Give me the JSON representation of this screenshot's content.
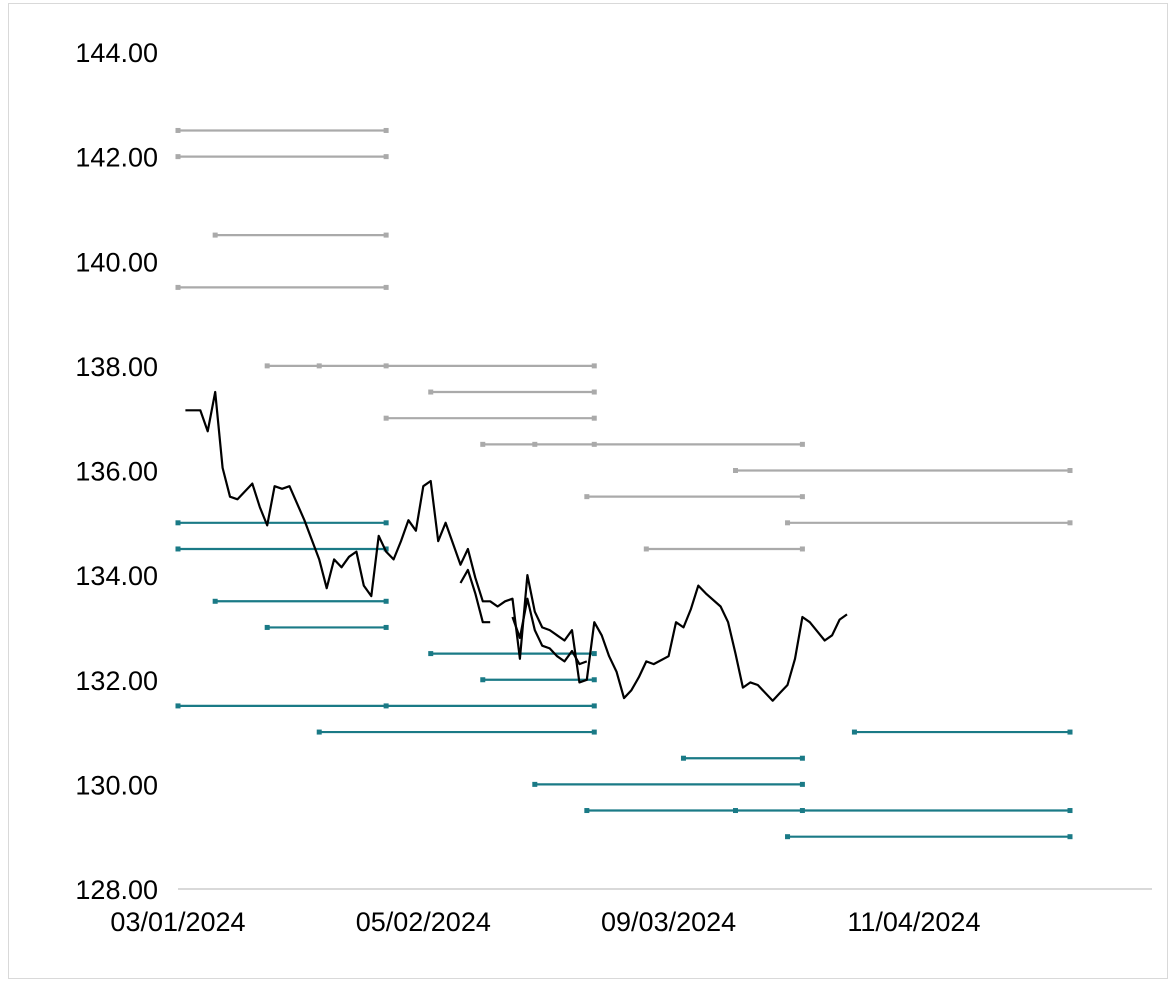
{
  "chart_data": {
    "type": "line",
    "title": "",
    "xlabel": "",
    "ylabel": "",
    "ylim": [
      128,
      144
    ],
    "yticks": [
      "128.00",
      "130.00",
      "132.00",
      "134.00",
      "136.00",
      "138.00",
      "140.00",
      "142.00",
      "144.00"
    ],
    "xticks": [
      {
        "date": "2024-01-03",
        "label": "03/01/2024"
      },
      {
        "date": "2024-02-05",
        "label": "05/02/2024"
      },
      {
        "date": "2024-03-09",
        "label": "09/03/2024"
      },
      {
        "date": "2024-04-11",
        "label": "11/04/2024"
      }
    ],
    "xlim": [
      "2024-01-03",
      "2024-05-02"
    ],
    "grid": false,
    "legend": "none",
    "colors": {
      "price_line": "#000000",
      "upper_levels": "#aaaaaa",
      "lower_levels": "#1a7a86",
      "axis": "#d9d9d9"
    },
    "series": [
      {
        "segments": [
          [
            [
              "2024-01-04",
              137.15
            ],
            [
              "2024-01-05",
              137.15
            ],
            [
              "2024-01-06",
              137.15
            ],
            [
              "2024-01-07",
              136.75
            ],
            [
              "2024-01-08",
              137.5
            ],
            [
              "2024-01-09",
              136.05
            ],
            [
              "2024-01-10",
              135.5
            ],
            [
              "2024-01-11",
              135.45
            ],
            [
              "2024-01-13",
              135.75
            ],
            [
              "2024-01-14",
              135.3
            ],
            [
              "2024-01-15",
              134.95
            ],
            [
              "2024-01-16",
              135.7
            ],
            [
              "2024-01-17",
              135.65
            ],
            [
              "2024-01-18",
              135.7
            ],
            [
              "2024-01-20",
              135.05
            ],
            [
              "2024-01-22",
              134.3
            ],
            [
              "2024-01-23",
              133.75
            ],
            [
              "2024-01-24",
              134.3
            ],
            [
              "2024-01-25",
              134.15
            ],
            [
              "2024-01-26",
              134.35
            ],
            [
              "2024-01-27",
              134.45
            ],
            [
              "2024-01-28",
              133.8
            ],
            [
              "2024-01-29",
              133.6
            ],
            [
              "2024-01-30",
              134.75
            ],
            [
              "2024-01-31",
              134.45
            ],
            [
              "2024-02-01",
              134.3
            ],
            [
              "2024-02-02",
              134.65
            ],
            [
              "2024-02-03",
              135.05
            ],
            [
              "2024-02-04",
              134.85
            ],
            [
              "2024-02-05",
              135.7
            ],
            [
              "2024-02-06",
              135.8
            ],
            [
              "2024-02-07",
              134.65
            ],
            [
              "2024-02-08",
              135.0
            ],
            [
              "2024-02-10",
              134.2
            ],
            [
              "2024-02-11",
              134.5
            ],
            [
              "2024-02-12",
              133.95
            ],
            [
              "2024-02-13",
              133.5
            ],
            [
              "2024-02-14",
              133.5
            ],
            [
              "2024-02-15",
              133.4
            ],
            [
              "2024-02-16",
              133.5
            ],
            [
              "2024-02-17",
              133.55
            ],
            [
              "2024-02-18",
              132.4
            ],
            [
              "2024-02-19",
              134.0
            ],
            [
              "2024-02-20",
              133.3
            ],
            [
              "2024-02-21",
              133.0
            ],
            [
              "2024-02-22",
              132.95
            ],
            [
              "2024-02-23",
              132.85
            ],
            [
              "2024-02-24",
              132.75
            ],
            [
              "2024-02-25",
              132.95
            ],
            [
              "2024-02-26",
              131.95
            ],
            [
              "2024-02-27",
              132.0
            ],
            [
              "2024-02-28",
              133.1
            ],
            [
              "2024-02-29",
              132.85
            ],
            [
              "2024-03-01",
              132.45
            ],
            [
              "2024-03-02",
              132.15
            ],
            [
              "2024-03-03",
              131.65
            ],
            [
              "2024-03-04",
              131.8
            ],
            [
              "2024-03-05",
              132.05
            ],
            [
              "2024-03-06",
              132.35
            ],
            [
              "2024-03-07",
              132.3
            ],
            [
              "2024-03-09",
              132.45
            ],
            [
              "2024-03-10",
              133.1
            ],
            [
              "2024-03-11",
              133.0
            ],
            [
              "2024-03-12",
              133.35
            ],
            [
              "2024-03-13",
              133.8
            ],
            [
              "2024-03-14",
              133.65
            ],
            [
              "2024-03-16",
              133.4
            ],
            [
              "2024-03-17",
              133.1
            ],
            [
              "2024-03-18",
              132.5
            ],
            [
              "2024-03-19",
              131.85
            ],
            [
              "2024-03-20",
              131.95
            ],
            [
              "2024-03-21",
              131.9
            ],
            [
              "2024-03-23",
              131.6
            ],
            [
              "2024-03-24",
              131.75
            ],
            [
              "2024-03-25",
              131.9
            ],
            [
              "2024-03-26",
              132.4
            ],
            [
              "2024-03-27",
              133.2
            ],
            [
              "2024-03-28",
              133.1
            ],
            [
              "2024-03-30",
              132.75
            ],
            [
              "2024-03-31",
              132.85
            ],
            [
              "2024-04-01",
              133.15
            ],
            [
              "2024-04-02",
              133.25
            ]
          ],
          [
            [
              "2024-02-10",
              133.85
            ],
            [
              "2024-02-11",
              134.1
            ],
            [
              "2024-02-12",
              133.65
            ],
            [
              "2024-02-13",
              133.1
            ],
            [
              "2024-02-14",
              133.1
            ]
          ],
          [
            [
              "2024-02-17",
              133.2
            ],
            [
              "2024-02-18",
              132.8
            ],
            [
              "2024-02-19",
              133.55
            ],
            [
              "2024-02-20",
              132.95
            ],
            [
              "2024-02-21",
              132.65
            ],
            [
              "2024-02-22",
              132.6
            ],
            [
              "2024-02-23",
              132.45
            ],
            [
              "2024-02-24",
              132.35
            ],
            [
              "2024-02-25",
              132.55
            ],
            [
              "2024-02-26",
              132.3
            ],
            [
              "2024-02-27",
              132.35
            ]
          ]
        ]
      }
    ],
    "levels": [
      {
        "group": "upper",
        "y": 142.5,
        "x": [
          "2024-01-03",
          "2024-01-31"
        ]
      },
      {
        "group": "upper",
        "y": 142.0,
        "x": [
          "2024-01-03",
          "2024-01-31"
        ]
      },
      {
        "group": "upper",
        "y": 140.5,
        "x": [
          "2024-01-08",
          "2024-01-31"
        ]
      },
      {
        "group": "upper",
        "y": 139.5,
        "x": [
          "2024-01-03",
          "2024-01-31"
        ]
      },
      {
        "group": "upper",
        "y": 138.0,
        "x": [
          "2024-01-15",
          "2024-01-22",
          "2024-01-31",
          "2024-02-28"
        ]
      },
      {
        "group": "upper",
        "y": 137.5,
        "x": [
          "2024-02-06",
          "2024-02-28"
        ]
      },
      {
        "group": "upper",
        "y": 137.0,
        "x": [
          "2024-01-31",
          "2024-02-28"
        ]
      },
      {
        "group": "upper",
        "y": 136.5,
        "x": [
          "2024-02-13",
          "2024-02-20",
          "2024-02-28",
          "2024-03-27"
        ]
      },
      {
        "group": "upper",
        "y": 136.0,
        "x": [
          "2024-03-18",
          "2024-05-02"
        ]
      },
      {
        "group": "upper",
        "y": 135.5,
        "x": [
          "2024-02-27",
          "2024-03-27"
        ]
      },
      {
        "group": "upper",
        "y": 135.0,
        "x": [
          "2024-03-25",
          "2024-05-02"
        ]
      },
      {
        "group": "upper",
        "y": 134.5,
        "x": [
          "2024-03-06",
          "2024-03-27"
        ]
      },
      {
        "group": "lower",
        "y": 135.0,
        "x": [
          "2024-01-03",
          "2024-01-31"
        ]
      },
      {
        "group": "lower",
        "y": 134.5,
        "x": [
          "2024-01-03",
          "2024-01-31"
        ]
      },
      {
        "group": "lower",
        "y": 133.5,
        "x": [
          "2024-01-08",
          "2024-01-31"
        ]
      },
      {
        "group": "lower",
        "y": 133.0,
        "x": [
          "2024-01-15",
          "2024-01-31"
        ]
      },
      {
        "group": "lower",
        "y": 132.5,
        "x": [
          "2024-02-06",
          "2024-02-28"
        ]
      },
      {
        "group": "lower",
        "y": 132.0,
        "x": [
          "2024-02-13",
          "2024-02-28"
        ]
      },
      {
        "group": "lower",
        "y": 131.5,
        "x": [
          "2024-01-03",
          "2024-01-31",
          "2024-02-28"
        ]
      },
      {
        "group": "lower",
        "y": 131.0,
        "x": [
          "2024-01-22",
          "2024-02-28"
        ]
      },
      {
        "group": "lower",
        "y": 131.0,
        "x": [
          "2024-04-03",
          "2024-05-02"
        ]
      },
      {
        "group": "lower",
        "y": 130.5,
        "x": [
          "2024-03-11",
          "2024-03-27"
        ]
      },
      {
        "group": "lower",
        "y": 130.0,
        "x": [
          "2024-02-20",
          "2024-03-27"
        ]
      },
      {
        "group": "lower",
        "y": 129.5,
        "x": [
          "2024-02-27",
          "2024-03-18",
          "2024-03-27",
          "2024-05-02"
        ]
      },
      {
        "group": "lower",
        "y": 129.0,
        "x": [
          "2024-03-25",
          "2024-05-02"
        ]
      }
    ]
  }
}
